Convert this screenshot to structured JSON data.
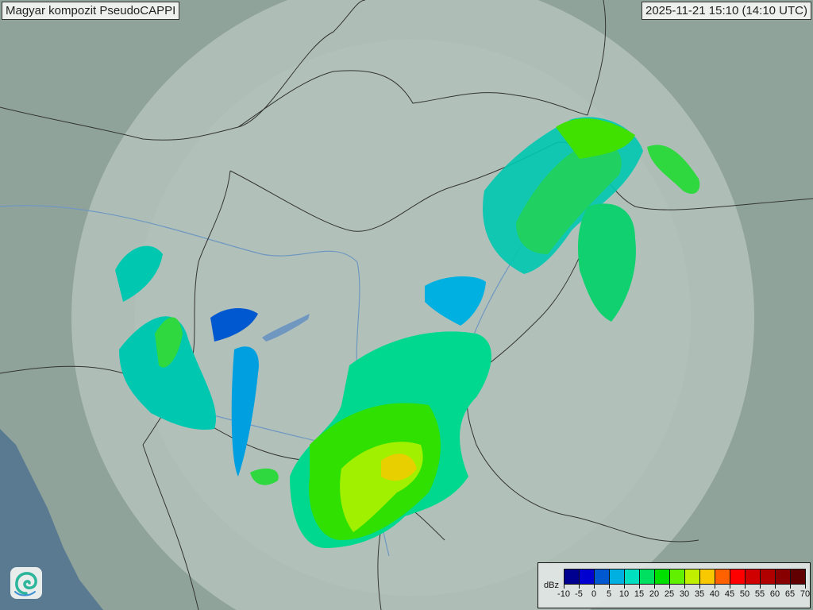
{
  "title": "Magyar kompozit  PseudoCAPPI",
  "timestamp": "2025-11-21 15:10 (14:10 UTC)",
  "legend": {
    "unit": "dBz",
    "ticks": [
      "-10",
      "-5",
      "0",
      "5",
      "10",
      "15",
      "20",
      "25",
      "30",
      "35",
      "40",
      "45",
      "50",
      "55",
      "60",
      "65",
      "70"
    ],
    "colors": [
      "#000090",
      "#0000d0",
      "#0058d0",
      "#00b0e0",
      "#00e0c0",
      "#00e060",
      "#00e000",
      "#60f000",
      "#c0f000",
      "#f8c800",
      "#ff6000",
      "#ff0000",
      "#d00000",
      "#b00000",
      "#880000",
      "#600000"
    ]
  },
  "logo": {
    "icon": "swirl-logo-icon"
  },
  "colors": {
    "land": "#8fa39a",
    "coverage": "#c9d6d0",
    "sea": "#5a7a92",
    "border": "#333333",
    "river": "#6f97c0"
  }
}
